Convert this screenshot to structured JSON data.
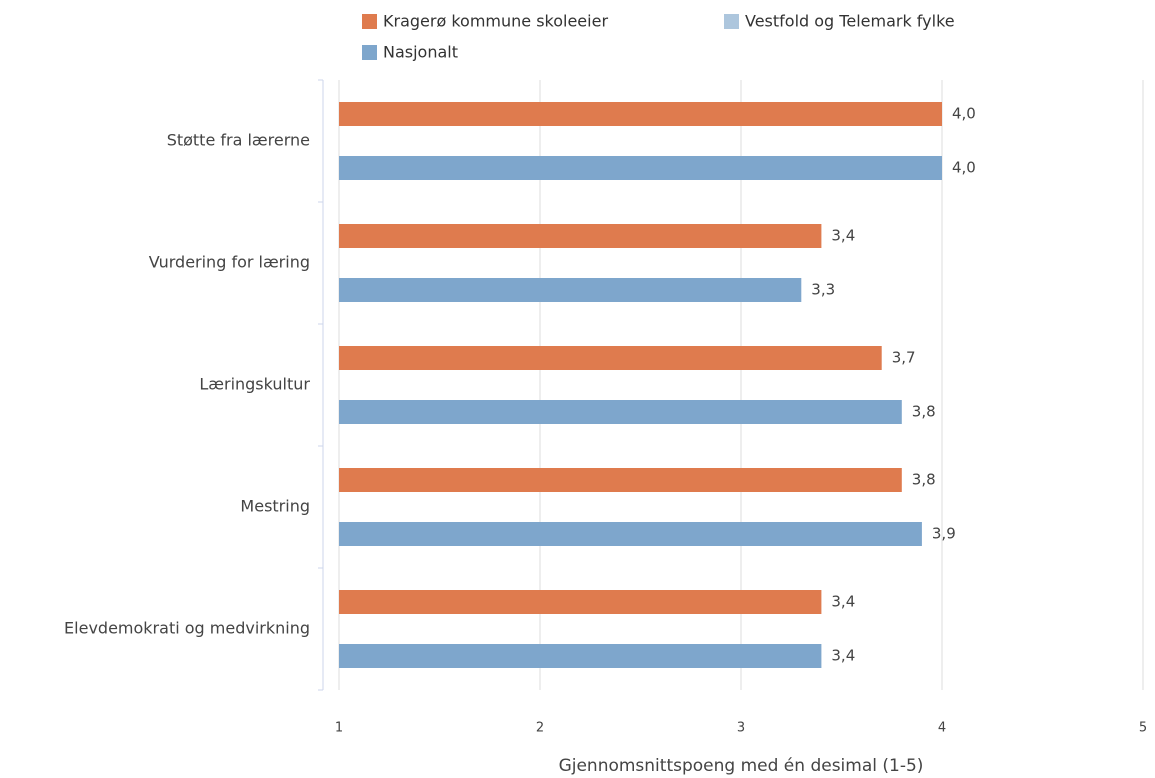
{
  "chart_data": {
    "type": "hbar",
    "x_label": "Gjennomsnittspoeng med én desimal (1-5)",
    "categories": [
      "Støtte fra lærerne",
      "Vurdering for læring",
      "Læringskultur",
      "Mestring",
      "Elevdemokrati og medvirkning"
    ],
    "series": [
      {
        "name": "Kragerø kommune skoleeier",
        "color": "#df7b4e",
        "values": [
          4.0,
          3.4,
          3.7,
          3.8,
          3.4
        ],
        "value_labels": [
          "4,0",
          "3,4",
          "3,7",
          "3,8",
          "3,4"
        ]
      },
      {
        "name": "Vestfold og Telemark fylke",
        "color": "#adc6dd",
        "values": [
          null,
          null,
          null,
          null,
          null
        ]
      },
      {
        "name": "Nasjonalt",
        "color": "#7ea6cc",
        "values": [
          4.0,
          3.3,
          3.8,
          3.9,
          3.4
        ],
        "value_labels": [
          "4,0",
          "3,3",
          "3,8",
          "3,9",
          "3,4"
        ]
      }
    ],
    "xlim": [
      1,
      5
    ],
    "xticks": [
      1,
      2,
      3,
      4,
      5
    ],
    "grid": true
  }
}
